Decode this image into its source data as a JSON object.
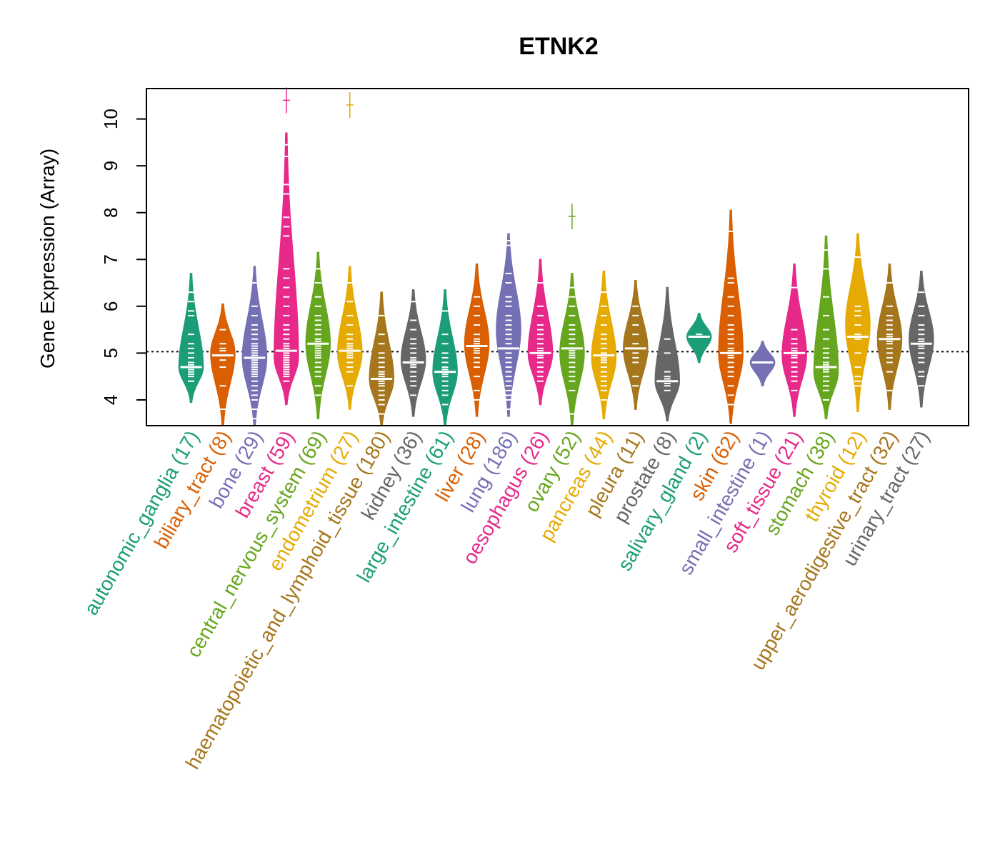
{
  "chart_data": {
    "type": "violin",
    "title": "ETNK2",
    "ylabel": "Gene Expression (Array)",
    "xlabel": "",
    "ylim": [
      3.45,
      10.65
    ],
    "yticks": [
      4,
      5,
      6,
      7,
      8,
      9,
      10
    ],
    "reference_line": 5.03,
    "categories": [
      {
        "name": "autonomic_ganglia",
        "n": 17,
        "label": "autonomic_ganglia (17)",
        "color": "#1B9E77",
        "min": 3.95,
        "max": 6.7,
        "median": 4.7,
        "q1": 4.5,
        "q3": 5.0,
        "mode": 4.7,
        "points": [
          4.4,
          4.5,
          4.55,
          4.6,
          4.7,
          4.75,
          4.8,
          4.9,
          5.0,
          5.1,
          5.2,
          5.4,
          5.8,
          5.9,
          6.1,
          6.3,
          4.65
        ],
        "outliers": []
      },
      {
        "name": "biliary_tract",
        "n": 8,
        "label": "biliary_tract (8)",
        "color": "#D95F02",
        "min": 3.45,
        "max": 6.05,
        "median": 4.95,
        "q1": 4.4,
        "q3": 5.2,
        "mode": 5.0,
        "points": [
          3.8,
          4.3,
          4.7,
          4.85,
          5.05,
          5.1,
          5.2,
          5.5
        ],
        "outliers": []
      },
      {
        "name": "bone",
        "n": 29,
        "label": "bone (29)",
        "color": "#7570B3",
        "min": 3.45,
        "max": 6.85,
        "median": 4.9,
        "q1": 4.3,
        "q3": 5.3,
        "mode": 4.9,
        "points": [
          3.6,
          3.8,
          4.0,
          4.1,
          4.2,
          4.3,
          4.4,
          4.5,
          4.6,
          4.7,
          4.8,
          4.85,
          4.9,
          4.95,
          5.0,
          5.05,
          5.1,
          5.2,
          5.3,
          5.4,
          5.5,
          5.6,
          5.8,
          6.0,
          6.5,
          4.75,
          4.65,
          4.55,
          5.15
        ],
        "outliers": []
      },
      {
        "name": "breast",
        "n": 59,
        "label": "breast (59)",
        "color": "#E7298A",
        "min": 3.9,
        "max": 9.7,
        "median": 5.05,
        "q1": 4.7,
        "q3": 5.9,
        "mode": 4.9,
        "points": [
          4.4,
          4.5,
          4.6,
          4.7,
          4.75,
          4.8,
          4.85,
          4.9,
          4.95,
          5.0,
          5.05,
          5.1,
          5.2,
          5.3,
          5.5,
          5.6,
          5.8,
          6.0,
          6.2,
          6.4,
          6.6,
          6.8,
          7.5,
          7.7,
          7.9,
          8.4,
          8.6,
          9.2,
          9.45,
          4.65,
          4.55,
          5.15,
          5.4
        ],
        "outliers": [
          10.4
        ]
      },
      {
        "name": "central_nervous_system",
        "n": 69,
        "label": "central_nervous_system (69)",
        "color": "#66A61E",
        "min": 3.6,
        "max": 7.15,
        "median": 5.2,
        "q1": 4.7,
        "q3": 5.6,
        "mode": 5.2,
        "points": [
          4.1,
          4.3,
          4.5,
          4.6,
          4.7,
          4.8,
          4.9,
          5.0,
          5.1,
          5.2,
          5.3,
          5.4,
          5.5,
          5.6,
          5.7,
          5.8,
          6.0,
          6.2,
          6.5,
          6.8,
          4.95,
          5.05,
          5.15,
          5.25
        ],
        "outliers": []
      },
      {
        "name": "endometrium",
        "n": 27,
        "label": "endometrium (27)",
        "color": "#E6AB02",
        "min": 3.8,
        "max": 6.85,
        "median": 5.05,
        "q1": 4.7,
        "q3": 5.4,
        "mode": 5.0,
        "points": [
          4.3,
          4.6,
          4.7,
          4.8,
          4.9,
          5.0,
          5.05,
          5.1,
          5.2,
          5.3,
          5.4,
          5.6,
          5.8,
          6.1,
          6.5,
          4.95,
          5.15
        ],
        "outliers": [
          10.3
        ]
      },
      {
        "name": "haematopoietic_and_lymphoid_tissue",
        "n": 180,
        "label": "haematopoietic_and_lymphoid_tissue (180)",
        "color": "#A6761D",
        "min": 3.45,
        "max": 6.3,
        "median": 4.45,
        "q1": 4.2,
        "q3": 4.8,
        "mode": 4.45,
        "points": [
          3.7,
          3.9,
          4.0,
          4.1,
          4.2,
          4.3,
          4.4,
          4.5,
          4.6,
          4.7,
          4.8,
          4.9,
          5.0,
          5.2,
          5.4,
          5.8,
          4.35,
          4.45,
          4.55
        ],
        "outliers": []
      },
      {
        "name": "kidney",
        "n": 36,
        "label": "kidney (36)",
        "color": "#666666",
        "min": 3.65,
        "max": 6.35,
        "median": 4.8,
        "q1": 4.4,
        "q3": 5.2,
        "mode": 4.85,
        "points": [
          4.1,
          4.3,
          4.4,
          4.5,
          4.6,
          4.7,
          4.8,
          4.9,
          5.0,
          5.1,
          5.2,
          5.3,
          5.5,
          5.7,
          6.1,
          4.75,
          4.85
        ],
        "outliers": []
      },
      {
        "name": "large_intestine",
        "n": 61,
        "label": "large_intestine (61)",
        "color": "#1B9E77",
        "min": 3.45,
        "max": 6.35,
        "median": 4.6,
        "q1": 4.25,
        "q3": 4.9,
        "mode": 4.6,
        "points": [
          3.9,
          4.1,
          4.2,
          4.3,
          4.4,
          4.5,
          4.6,
          4.7,
          4.8,
          4.9,
          5.0,
          5.2,
          5.4,
          5.9,
          4.55,
          4.65
        ],
        "outliers": []
      },
      {
        "name": "liver",
        "n": 28,
        "label": "liver (28)",
        "color": "#D95F02",
        "min": 3.65,
        "max": 6.9,
        "median": 5.15,
        "q1": 4.8,
        "q3": 5.6,
        "mode": 5.2,
        "points": [
          4.0,
          4.2,
          4.5,
          4.7,
          4.8,
          4.9,
          5.0,
          5.1,
          5.2,
          5.3,
          5.4,
          5.6,
          5.8,
          6.0,
          6.2,
          5.05,
          5.25
        ],
        "outliers": []
      },
      {
        "name": "lung",
        "n": 186,
        "label": "lung (186)",
        "color": "#7570B3",
        "min": 3.65,
        "max": 7.55,
        "median": 5.1,
        "q1": 4.5,
        "q3": 5.8,
        "mode": 5.5,
        "points": [
          3.8,
          4.0,
          4.1,
          4.2,
          4.3,
          4.4,
          4.5,
          4.6,
          4.7,
          4.8,
          4.9,
          5.0,
          5.1,
          5.2,
          5.3,
          5.4,
          5.5,
          5.6,
          5.7,
          5.8,
          6.0,
          6.1,
          6.2,
          6.5,
          6.7,
          7.3,
          7.4
        ],
        "outliers": []
      },
      {
        "name": "oesophagus",
        "n": 26,
        "label": "oesophagus (26)",
        "color": "#E7298A",
        "min": 3.9,
        "max": 7.0,
        "median": 5.0,
        "q1": 4.6,
        "q3": 5.5,
        "mode": 5.0,
        "points": [
          4.4,
          4.5,
          4.6,
          4.7,
          4.8,
          4.9,
          5.0,
          5.1,
          5.2,
          5.3,
          5.4,
          5.5,
          5.6,
          5.8,
          6.0,
          6.5,
          4.95,
          5.05
        ],
        "outliers": []
      },
      {
        "name": "ovary",
        "n": 52,
        "label": "ovary (52)",
        "color": "#66A61E",
        "min": 3.45,
        "max": 6.7,
        "median": 5.1,
        "q1": 4.6,
        "q3": 5.4,
        "mode": 5.0,
        "points": [
          3.7,
          4.2,
          4.4,
          4.5,
          4.6,
          4.7,
          4.8,
          4.9,
          5.0,
          5.1,
          5.2,
          5.3,
          5.4,
          5.5,
          5.6,
          5.8,
          6.0,
          6.2,
          6.4,
          4.95,
          5.05
        ],
        "outliers": [
          7.92
        ]
      },
      {
        "name": "pancreas",
        "n": 44,
        "label": "pancreas (44)",
        "color": "#E6AB02",
        "min": 3.6,
        "max": 6.75,
        "median": 4.95,
        "q1": 4.5,
        "q3": 5.3,
        "mode": 4.9,
        "points": [
          4.0,
          4.2,
          4.3,
          4.4,
          4.5,
          4.6,
          4.7,
          4.8,
          4.9,
          5.0,
          5.1,
          5.2,
          5.3,
          5.4,
          5.6,
          5.8,
          6.0,
          6.3,
          4.85,
          4.95
        ],
        "outliers": []
      },
      {
        "name": "pleura",
        "n": 11,
        "label": "pleura (11)",
        "color": "#A6761D",
        "min": 3.8,
        "max": 6.55,
        "median": 5.1,
        "q1": 4.5,
        "q3": 5.6,
        "mode": 5.1,
        "points": [
          4.3,
          4.5,
          4.8,
          5.0,
          5.1,
          5.2,
          5.4,
          5.6,
          5.8,
          6.0,
          4.9
        ],
        "outliers": []
      },
      {
        "name": "prostate",
        "n": 8,
        "label": "prostate (8)",
        "color": "#666666",
        "min": 3.55,
        "max": 6.4,
        "median": 4.4,
        "q1": 4.2,
        "q3": 5.0,
        "mode": 4.4,
        "points": [
          4.2,
          4.3,
          4.35,
          4.45,
          4.6,
          5.0,
          5.3,
          4.5
        ],
        "outliers": []
      },
      {
        "name": "salivary_gland",
        "n": 2,
        "label": "salivary_gland (2)",
        "color": "#1B9E77",
        "min": 4.8,
        "max": 5.85,
        "median": 5.35,
        "q1": 5.3,
        "q3": 5.4,
        "mode": 5.35,
        "points": [
          5.35,
          5.4
        ],
        "outliers": []
      },
      {
        "name": "skin",
        "n": 62,
        "label": "skin (62)",
        "color": "#D95F02",
        "min": 3.5,
        "max": 8.05,
        "median": 5.0,
        "q1": 4.5,
        "q3": 5.6,
        "mode": 5.0,
        "points": [
          3.9,
          4.1,
          4.3,
          4.5,
          4.6,
          4.7,
          4.8,
          4.9,
          5.0,
          5.1,
          5.2,
          5.3,
          5.4,
          5.5,
          5.6,
          5.8,
          6.0,
          6.2,
          6.5,
          6.6,
          7.6,
          4.95,
          5.05
        ],
        "outliers": []
      },
      {
        "name": "small_intestine",
        "n": 1,
        "label": "small_intestine (1)",
        "color": "#7570B3",
        "min": 4.3,
        "max": 5.25,
        "median": 4.8,
        "q1": 4.8,
        "q3": 4.8,
        "mode": 4.8,
        "points": [
          4.8
        ],
        "outliers": []
      },
      {
        "name": "soft_tissue",
        "n": 21,
        "label": "soft_tissue (21)",
        "color": "#E7298A",
        "min": 3.65,
        "max": 6.9,
        "median": 5.0,
        "q1": 4.6,
        "q3": 5.3,
        "mode": 4.95,
        "points": [
          4.2,
          4.4,
          4.5,
          4.6,
          4.7,
          4.8,
          4.9,
          5.0,
          5.1,
          5.2,
          5.3,
          5.5,
          6.4,
          4.95,
          5.05
        ],
        "outliers": []
      },
      {
        "name": "stomach",
        "n": 38,
        "label": "stomach (38)",
        "color": "#66A61E",
        "min": 3.6,
        "max": 7.5,
        "median": 4.7,
        "q1": 4.3,
        "q3": 5.0,
        "mode": 4.6,
        "points": [
          4.0,
          4.2,
          4.3,
          4.4,
          4.5,
          4.6,
          4.7,
          4.8,
          4.9,
          5.0,
          5.1,
          5.3,
          5.5,
          5.8,
          6.2,
          6.8,
          7.2,
          4.65,
          4.75
        ],
        "outliers": []
      },
      {
        "name": "thyroid",
        "n": 12,
        "label": "thyroid (12)",
        "color": "#E6AB02",
        "min": 3.75,
        "max": 7.55,
        "median": 5.35,
        "q1": 4.6,
        "q3": 5.9,
        "mode": 5.6,
        "points": [
          4.3,
          4.5,
          4.7,
          5.0,
          5.3,
          5.4,
          5.6,
          5.8,
          5.9,
          6.0,
          7.05,
          4.4
        ],
        "outliers": []
      },
      {
        "name": "upper_aerodigestive_tract",
        "n": 32,
        "label": "upper_aerodigestive_tract (32)",
        "color": "#A6761D",
        "min": 3.8,
        "max": 6.9,
        "median": 5.3,
        "q1": 5.0,
        "q3": 5.6,
        "mode": 5.3,
        "points": [
          4.2,
          4.6,
          4.8,
          4.9,
          5.0,
          5.1,
          5.2,
          5.3,
          5.4,
          5.5,
          5.6,
          5.7,
          5.8,
          6.0,
          6.5,
          5.25,
          5.35
        ],
        "outliers": []
      },
      {
        "name": "urinary_tract",
        "n": 27,
        "label": "urinary_tract (27)",
        "color": "#666666",
        "min": 3.85,
        "max": 6.75,
        "median": 5.2,
        "q1": 4.7,
        "q3": 5.6,
        "mode": 5.3,
        "points": [
          4.3,
          4.5,
          4.6,
          4.8,
          4.9,
          5.0,
          5.1,
          5.2,
          5.3,
          5.4,
          5.5,
          5.6,
          5.8,
          6.0,
          6.3,
          5.15,
          5.25
        ],
        "outliers": []
      }
    ]
  }
}
